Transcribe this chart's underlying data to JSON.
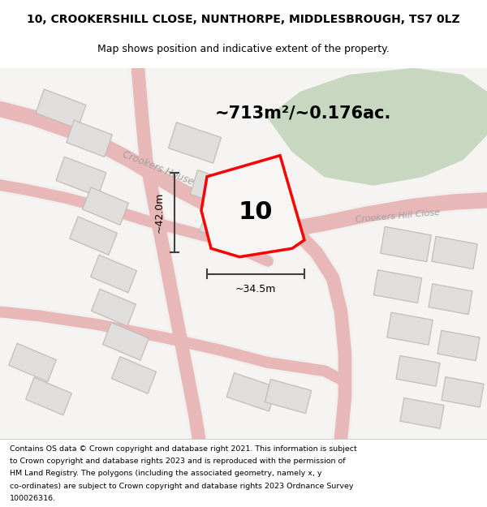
{
  "title_line1": "10, CROOKERSHILL CLOSE, NUNTHORPE, MIDDLESBROUGH, TS7 0LZ",
  "title_line2": "Map shows position and indicative extent of the property.",
  "area_text": "~713m²/~0.176ac.",
  "number_label": "10",
  "dim_vertical": "~42.0m",
  "dim_horizontal": "~34.5m",
  "road_label1": "Crookers House",
  "road_label2": "Crookers Hill Close",
  "footer_text": "Contains OS data © Crown copyright and database right 2021. This information is subject to Crown copyright and database rights 2023 and is reproduced with the permission of HM Land Registry. The polygons (including the associated geometry, namely x, y co-ordinates) are subject to Crown copyright and database rights 2023 Ordnance Survey 100026316.",
  "bg_color": "#f5f4f2",
  "map_bg": "#f0eeeb",
  "plot_fill": "#f0eeeb",
  "red_color": "#ff0000",
  "green_area_color": "#c8d8c0",
  "road_color": "#e8b8b8",
  "building_color": "#e0dedd",
  "building_outline": "#d0c8c4",
  "dark_road_outline": "#e89090"
}
